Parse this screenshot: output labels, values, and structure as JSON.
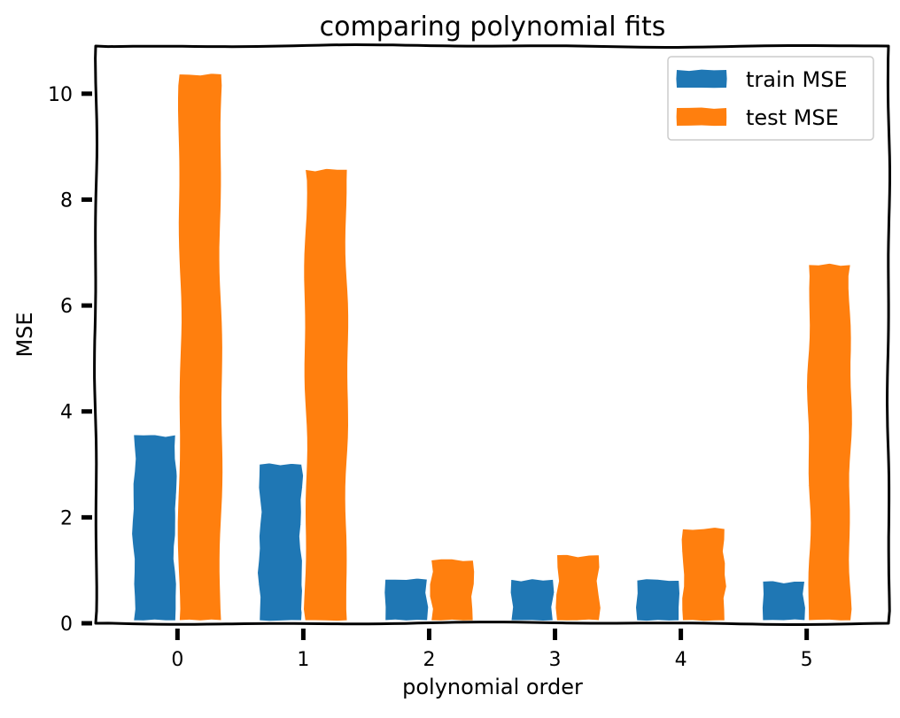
{
  "chart_data": {
    "type": "bar",
    "title": "comparing polynomial fits",
    "xlabel": "polynomial order",
    "ylabel": "MSE",
    "categories": [
      "0",
      "1",
      "2",
      "3",
      "4",
      "5"
    ],
    "series": [
      {
        "name": "train MSE",
        "values": [
          3.58,
          3.02,
          0.85,
          0.85,
          0.83,
          0.81
        ],
        "color": "#1f77b4"
      },
      {
        "name": "test MSE",
        "values": [
          10.39,
          8.59,
          1.21,
          1.31,
          1.8,
          6.79
        ],
        "color": "#ff7f0e"
      }
    ],
    "ylim": [
      0,
      10.9
    ],
    "yticks": [
      0,
      2,
      4,
      6,
      8,
      10
    ],
    "grid": false,
    "legend_position": "top-right",
    "style": "xkcd"
  }
}
